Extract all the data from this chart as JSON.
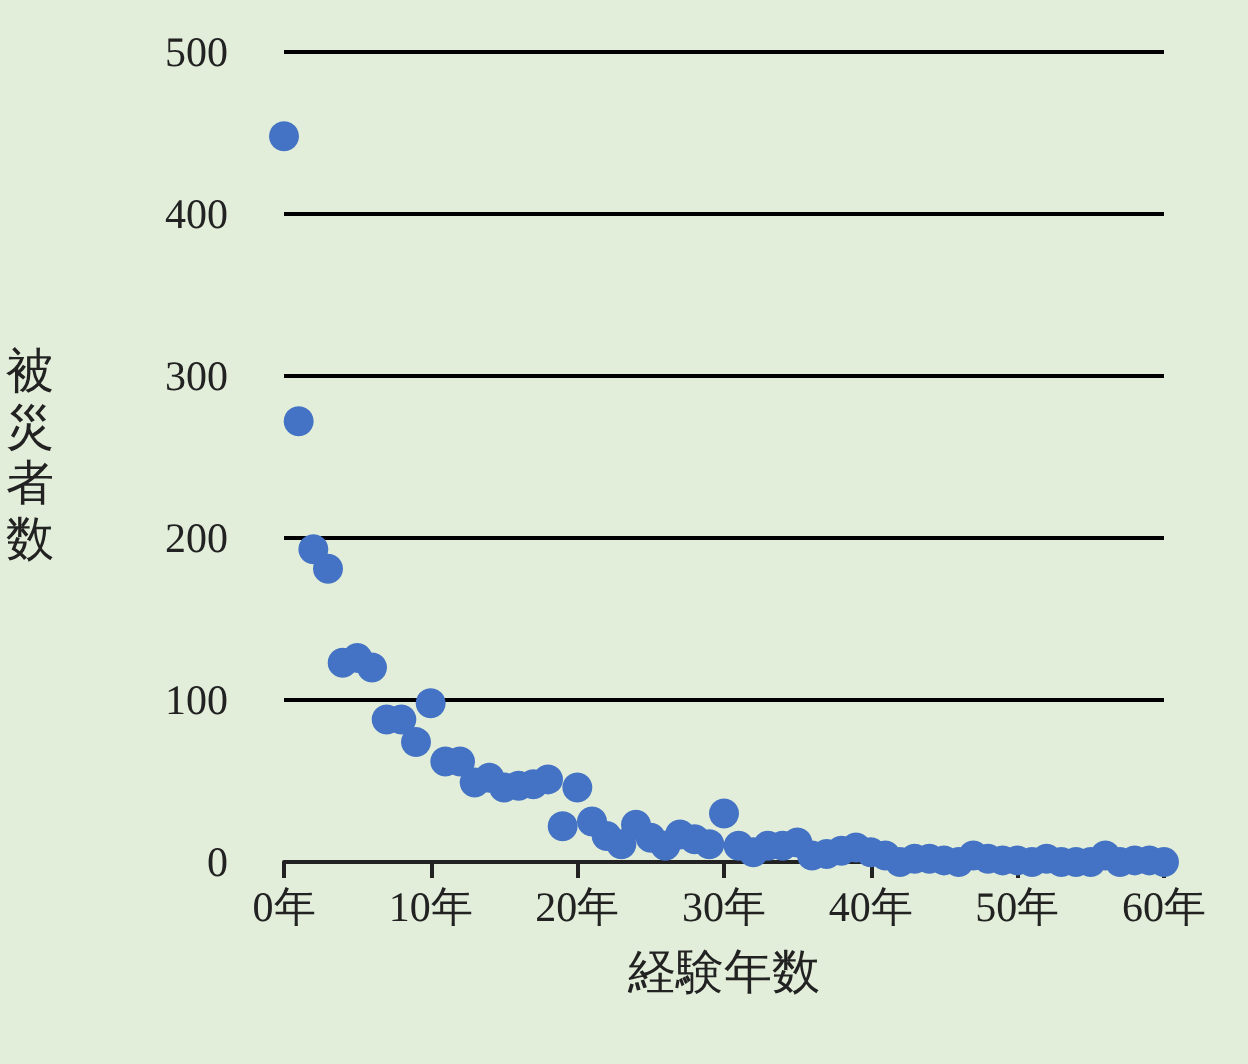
{
  "chart_data": {
    "type": "scatter",
    "xlabel": "経験年数",
    "ylabel": "被災者数",
    "x": [
      0,
      1,
      2,
      3,
      4,
      5,
      6,
      7,
      8,
      9,
      10,
      11,
      12,
      13,
      14,
      15,
      16,
      17,
      18,
      19,
      20,
      21,
      22,
      23,
      24,
      25,
      26,
      27,
      28,
      29,
      30,
      31,
      32,
      33,
      34,
      35,
      36,
      37,
      38,
      39,
      40,
      41,
      42,
      43,
      44,
      45,
      46,
      47,
      48,
      49,
      50,
      51,
      52,
      53,
      54,
      55,
      56,
      57,
      58,
      59,
      60
    ],
    "values": [
      448,
      272,
      193,
      181,
      123,
      126,
      120,
      88,
      88,
      74,
      98,
      62,
      62,
      49,
      52,
      46,
      47,
      48,
      51,
      22,
      46,
      25,
      16,
      11,
      23,
      15,
      10,
      17,
      14,
      11,
      30,
      10,
      6,
      10,
      10,
      12,
      4,
      5,
      7,
      9,
      6,
      4,
      0,
      2,
      2,
      1,
      0,
      4,
      2,
      1,
      1,
      0,
      2,
      0,
      0,
      0,
      4,
      0,
      1,
      1,
      0
    ],
    "color": "#4472c4",
    "marker": "circle",
    "grid": "y",
    "xlim": [
      0,
      60
    ],
    "xticks": [
      {
        "value": 0,
        "label": "0年"
      },
      {
        "value": 10,
        "label": "10年"
      },
      {
        "value": 20,
        "label": "20年"
      },
      {
        "value": 30,
        "label": "30年"
      },
      {
        "value": 40,
        "label": "40年"
      },
      {
        "value": 50,
        "label": "50年"
      },
      {
        "value": 60,
        "label": "60年"
      }
    ],
    "ylim": [
      0,
      500
    ],
    "yticks": [
      0,
      100,
      200,
      300,
      400,
      500
    ]
  }
}
